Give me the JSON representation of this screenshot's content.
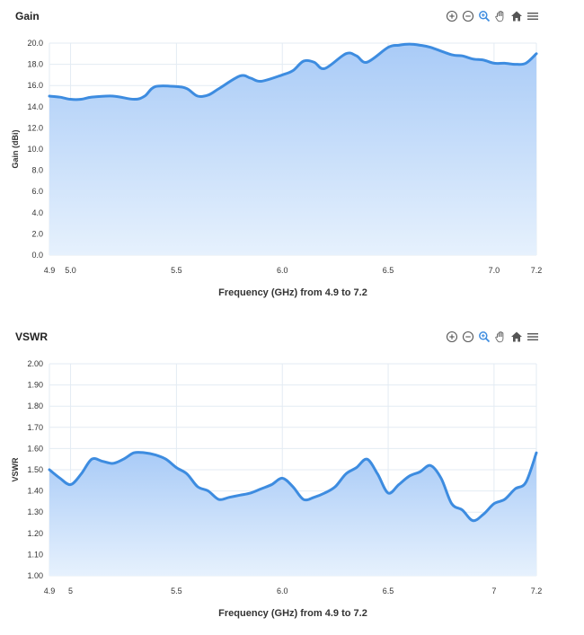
{
  "toolbar_icons": [
    "zoom-in-icon",
    "zoom-out-icon",
    "magnifier-icon",
    "pan-hand-icon",
    "home-icon",
    "menu-icon"
  ],
  "colors": {
    "line": "#3d8ce0",
    "fill_top": "#a9cbf7",
    "fill_bottom": "#e6f1fd",
    "grid": "#e3ebf3"
  },
  "chart_data": [
    {
      "type": "area",
      "title": "Gain",
      "xlabel": "Frequency (GHz) from 4.9 to 7.2",
      "ylabel": "Gain (dBi)",
      "xlim": [
        4.9,
        7.2
      ],
      "ylim": [
        0,
        20
      ],
      "x_ticks": [
        "4.9",
        "5.0",
        "5.5",
        "6.0",
        "6.5",
        "7.0",
        "7.2"
      ],
      "y_ticks": [
        "0.0",
        "2.0",
        "4.0",
        "6.0",
        "8.0",
        "10.0",
        "12.0",
        "14.0",
        "16.0",
        "18.0",
        "20.0"
      ],
      "grid": true,
      "x": [
        4.9,
        4.95,
        5.0,
        5.05,
        5.1,
        5.2,
        5.3,
        5.35,
        5.4,
        5.5,
        5.55,
        5.6,
        5.65,
        5.7,
        5.8,
        5.85,
        5.9,
        6.0,
        6.05,
        6.1,
        6.15,
        6.2,
        6.3,
        6.35,
        6.4,
        6.5,
        6.55,
        6.6,
        6.65,
        6.7,
        6.8,
        6.85,
        6.9,
        6.95,
        7.0,
        7.05,
        7.1,
        7.15,
        7.2
      ],
      "y": [
        15.0,
        14.9,
        14.7,
        14.7,
        14.9,
        15.0,
        14.7,
        15.0,
        15.9,
        15.9,
        15.7,
        15.0,
        15.1,
        15.7,
        16.9,
        16.7,
        16.4,
        17.0,
        17.4,
        18.3,
        18.2,
        17.6,
        19.0,
        18.8,
        18.2,
        19.6,
        19.8,
        19.9,
        19.8,
        19.6,
        18.9,
        18.8,
        18.5,
        18.4,
        18.1,
        18.1,
        18.0,
        18.1,
        19.0
      ]
    },
    {
      "type": "area",
      "title": "VSWR",
      "xlabel": "Frequency (GHz) from 4.9 to 7.2",
      "ylabel": "VSWR",
      "xlim": [
        4.9,
        7.2
      ],
      "ylim": [
        1.0,
        2.0
      ],
      "x_ticks": [
        "4.9",
        "5",
        "5.5",
        "6.0",
        "6.5",
        "7",
        "7.2"
      ],
      "y_ticks": [
        "1.00",
        "1.10",
        "1.20",
        "1.30",
        "1.40",
        "1.50",
        "1.60",
        "1.70",
        "1.80",
        "1.90",
        "2.00"
      ],
      "grid": true,
      "x": [
        4.9,
        4.95,
        5.0,
        5.05,
        5.1,
        5.15,
        5.2,
        5.25,
        5.3,
        5.35,
        5.4,
        5.45,
        5.5,
        5.55,
        5.6,
        5.65,
        5.7,
        5.75,
        5.8,
        5.85,
        5.9,
        5.95,
        6.0,
        6.05,
        6.1,
        6.15,
        6.2,
        6.25,
        6.3,
        6.35,
        6.4,
        6.45,
        6.5,
        6.55,
        6.6,
        6.65,
        6.7,
        6.75,
        6.8,
        6.85,
        6.9,
        6.95,
        7.0,
        7.05,
        7.1,
        7.15,
        7.2
      ],
      "y": [
        1.5,
        1.46,
        1.43,
        1.48,
        1.55,
        1.54,
        1.53,
        1.55,
        1.58,
        1.58,
        1.57,
        1.55,
        1.51,
        1.48,
        1.42,
        1.4,
        1.36,
        1.37,
        1.38,
        1.39,
        1.41,
        1.43,
        1.46,
        1.42,
        1.36,
        1.37,
        1.39,
        1.42,
        1.48,
        1.51,
        1.55,
        1.48,
        1.39,
        1.43,
        1.47,
        1.49,
        1.52,
        1.46,
        1.34,
        1.31,
        1.26,
        1.29,
        1.34,
        1.36,
        1.41,
        1.44,
        1.58
      ]
    }
  ]
}
